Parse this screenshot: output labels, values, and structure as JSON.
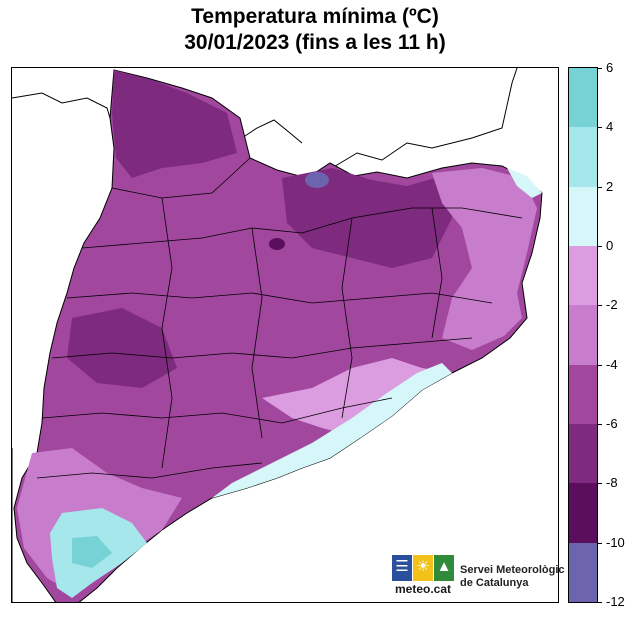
{
  "title_line1": "Temperatura mínima (ºC)",
  "title_line2": "30/01/2023 (fins a les 11 h)",
  "legend": {
    "bands": [
      {
        "from": 4,
        "to": 6,
        "color": "#76d2d4"
      },
      {
        "from": 2,
        "to": 4,
        "color": "#a5e7ea"
      },
      {
        "from": 0,
        "to": 2,
        "color": "#d6f7f9"
      },
      {
        "from": -2,
        "to": 0,
        "color": "#dc9ce0"
      },
      {
        "from": -4,
        "to": -2,
        "color": "#c77dcc"
      },
      {
        "from": -6,
        "to": -4,
        "color": "#a2479e"
      },
      {
        "from": -8,
        "to": -6,
        "color": "#7e2a7e"
      },
      {
        "from": -10,
        "to": -8,
        "color": "#5b0e5b"
      },
      {
        "from": -12,
        "to": -10,
        "color": "#6d64ae"
      }
    ],
    "ticks": [
      "6",
      "4",
      "2",
      "0",
      "-2",
      "-4",
      "-6",
      "-8",
      "-10",
      "-12"
    ]
  },
  "logo": {
    "brand": "meteo.cat",
    "org_line1": "Servei Meteorològic",
    "org_line2": "de Catalunya",
    "icons": [
      "flag-stripes-icon",
      "sun-icon",
      "mountain-icon"
    ]
  }
}
